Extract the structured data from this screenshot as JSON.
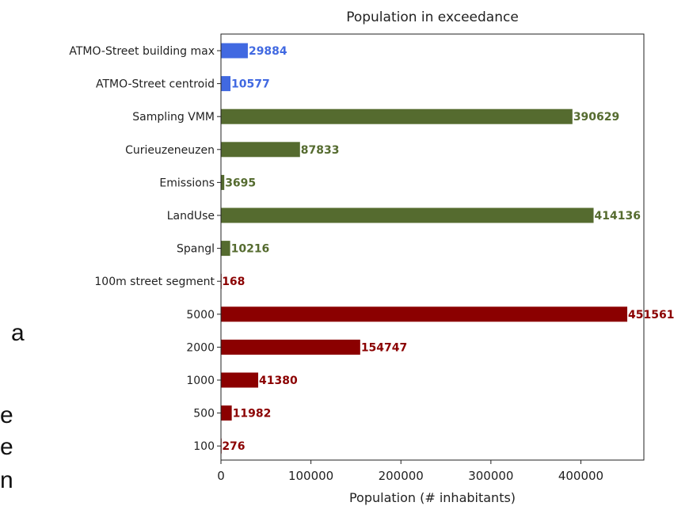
{
  "chart_data": {
    "type": "bar",
    "orientation": "horizontal",
    "title": "Population in exceedance",
    "xlabel": "Population (# inhabitants)",
    "ylabel": "",
    "xlim": [
      0,
      470000
    ],
    "xticks": [
      0,
      100000,
      200000,
      300000,
      400000
    ],
    "xtick_labels": [
      "0",
      "100000",
      "200000",
      "300000",
      "400000"
    ],
    "grid": false,
    "legend": null,
    "categories": [
      "ATMO-Street building max",
      "ATMO-Street centroid",
      "Sampling VMM",
      "Curieuzeneuzen",
      "Emissions",
      "LandUse",
      "Spangl",
      "100m street segment",
      "5000",
      "2000",
      "1000",
      "500",
      "100"
    ],
    "values": [
      29884,
      10577,
      390629,
      87833,
      3695,
      414136,
      10216,
      168,
      451561,
      154747,
      41380,
      11982,
      276
    ],
    "data_labels": [
      "29884",
      "10577",
      "390629",
      "87833",
      "3695",
      "414136",
      "10216",
      "168",
      "451561",
      "154747",
      "41380",
      "11982",
      "276"
    ],
    "bar_colors": [
      "#4169e1",
      "#4169e1",
      "#556b2f",
      "#556b2f",
      "#556b2f",
      "#556b2f",
      "#556b2f",
      "#8b0000",
      "#8b0000",
      "#8b0000",
      "#8b0000",
      "#8b0000",
      "#8b0000"
    ],
    "label_colors": [
      "#4169e1",
      "#4169e1",
      "#556b2f",
      "#556b2f",
      "#556b2f",
      "#556b2f",
      "#556b2f",
      "#8b0000",
      "#8b0000",
      "#8b0000",
      "#8b0000",
      "#8b0000",
      "#8b0000"
    ]
  },
  "side_text": [
    "a",
    "e",
    "e",
    "n"
  ]
}
